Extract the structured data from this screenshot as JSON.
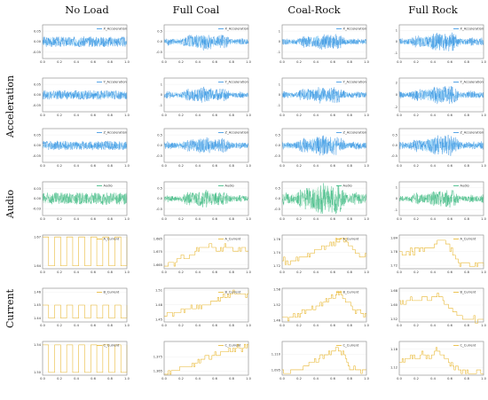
{
  "columns": [
    "No Load",
    "Full Coal",
    "Coal-Rock",
    "Full Rock"
  ],
  "row_groups": [
    {
      "label": "Acceleration",
      "rows": [
        0,
        1,
        2
      ]
    },
    {
      "label": "Audio",
      "rows": [
        3
      ]
    },
    {
      "label": "Current",
      "rows": [
        4,
        5,
        6
      ]
    }
  ],
  "colors": {
    "acceleration": "#2f8fe0",
    "acceleration_light": "#7ac7f5",
    "audio": "#2fb57a",
    "audio_light": "#9fdcbc",
    "current": "#e8b52a"
  },
  "chart_data": [
    {
      "row": 0,
      "type": "line",
      "kind": "vibration",
      "series_name": "X_Acceleration",
      "x_ticks": [
        "0.2",
        "0.4",
        "0.6",
        "0.8",
        "1.0"
      ],
      "x_first_tick": "0.0",
      "xlim": [
        0,
        1
      ],
      "y_ticks": [
        [
          "0.05",
          "0.00",
          "-0.05"
        ],
        [
          "0.5",
          "0.0",
          "-0.5"
        ],
        [
          "1",
          "0",
          "-1"
        ],
        [
          "1",
          "0",
          "-1"
        ]
      ],
      "ylim": [
        [
          -0.08,
          0.08
        ],
        [
          -0.8,
          0.8
        ],
        [
          -1.6,
          1.6
        ],
        [
          -1.5,
          1.5
        ]
      ],
      "amplitude": [
        0.025,
        0.3,
        0.55,
        0.6
      ]
    },
    {
      "row": 1,
      "type": "line",
      "kind": "vibration",
      "series_name": "Y_Acceleration",
      "x_ticks": [
        "0.2",
        "0.4",
        "0.6",
        "0.8",
        "1.0"
      ],
      "x_first_tick": "0.0",
      "xlim": [
        0,
        1
      ],
      "y_ticks": [
        [
          "0.05",
          "0.00",
          "-0.05"
        ],
        [
          "1",
          "0",
          "-1"
        ],
        [
          "1",
          "0",
          "-1"
        ],
        [
          "2",
          "0",
          "-2"
        ]
      ],
      "ylim": [
        [
          -0.08,
          0.08
        ],
        [
          -1.6,
          1.6
        ],
        [
          -1.6,
          1.6
        ],
        [
          -2.8,
          2.8
        ]
      ],
      "amplitude": [
        0.022,
        0.55,
        0.6,
        1.1
      ]
    },
    {
      "row": 2,
      "type": "line",
      "kind": "vibration",
      "series_name": "Z_Acceleration",
      "x_ticks": [
        "0.2",
        "0.4",
        "0.6",
        "0.8",
        "1.0"
      ],
      "x_first_tick": "0.0",
      "xlim": [
        0,
        1
      ],
      "y_ticks": [
        [
          "0.05",
          "0.00",
          "-0.05"
        ],
        [
          "0.5",
          "0.0",
          "-0.5"
        ],
        [
          "0.5",
          "0.0",
          "-0.5"
        ],
        [
          "0.5",
          "0.0",
          "-0.5"
        ]
      ],
      "ylim": [
        [
          -0.08,
          0.08
        ],
        [
          -0.8,
          0.8
        ],
        [
          -0.8,
          0.8
        ],
        [
          -0.8,
          0.8
        ]
      ],
      "amplitude": [
        0.022,
        0.3,
        0.35,
        0.35
      ]
    },
    {
      "row": 3,
      "type": "line",
      "kind": "audio",
      "series_name": "Audio",
      "x_ticks": [
        "0.2",
        "0.4",
        "0.6",
        "0.8",
        "1.0"
      ],
      "x_first_tick": "0.0",
      "xlim": [
        0,
        1
      ],
      "y_ticks": [
        [
          "0.03",
          "0.00",
          "-0.03"
        ],
        [
          "0.5",
          "0.0",
          "-0.5"
        ],
        [
          "0.5",
          "0.0",
          "-0.5"
        ],
        [
          "1",
          "0",
          "-1"
        ]
      ],
      "ylim": [
        [
          -0.05,
          0.05
        ],
        [
          -0.8,
          0.8
        ],
        [
          -0.8,
          0.8
        ],
        [
          -1.5,
          1.5
        ]
      ],
      "amplitude": [
        0.018,
        0.3,
        0.55,
        0.55
      ]
    },
    {
      "row": 4,
      "type": "line",
      "kind": "current",
      "series_name": "A_Current",
      "x_ticks": [
        "0.2",
        "0.4",
        "0.6",
        "0.8",
        "1.0"
      ],
      "x_first_tick": "0.0",
      "xlim": [
        0,
        1
      ],
      "y_ticks": [
        [
          "1.67",
          "1.64"
        ],
        [
          "1.685",
          "1.675",
          "1.665"
        ],
        [
          "1.76",
          "1.74",
          "1.72"
        ],
        [
          "1.84",
          "1.78",
          "1.72"
        ]
      ],
      "ylim": [
        [
          1.637,
          1.672
        ],
        [
          1.662,
          1.688
        ],
        [
          1.716,
          1.766
        ],
        [
          1.705,
          1.852
        ]
      ],
      "profiles": [
        [
          1.67,
          1.64,
          1.67,
          1.64,
          1.67,
          1.64,
          1.67,
          1.64,
          1.67,
          1.64,
          1.67,
          1.64,
          1.67,
          1.64,
          1.67
        ],
        [
          1.665,
          1.665,
          1.668,
          1.672,
          1.67,
          1.675,
          1.677,
          1.68,
          1.678,
          1.676,
          1.68,
          1.677,
          1.676,
          1.678,
          1.677
        ],
        [
          1.728,
          1.726,
          1.73,
          1.733,
          1.736,
          1.74,
          1.744,
          1.748,
          1.752,
          1.757,
          1.76,
          1.752,
          1.74,
          1.736,
          1.735
        ],
        [
          1.775,
          1.77,
          1.78,
          1.785,
          1.792,
          1.8,
          1.812,
          1.83,
          1.815,
          1.76,
          1.73,
          1.727,
          1.725,
          1.723,
          1.722
        ]
      ]
    },
    {
      "row": 5,
      "type": "line",
      "kind": "current",
      "series_name": "B_Current",
      "x_ticks": [
        "0.2",
        "0.4",
        "0.6",
        "0.8",
        "1.0"
      ],
      "x_first_tick": "0.0",
      "xlim": [
        0,
        1
      ],
      "y_ticks": [
        [
          "1.46",
          "1.45",
          "1.44"
        ],
        [
          "1.51",
          "1.48",
          "1.45"
        ],
        [
          "1.58",
          "1.52",
          "1.46"
        ],
        [
          "1.68",
          "1.60",
          "1.52"
        ]
      ],
      "ylim": [
        [
          1.437,
          1.463
        ],
        [
          1.445,
          1.514
        ],
        [
          1.455,
          1.585
        ],
        [
          1.505,
          1.695
        ]
      ],
      "profiles": [
        [
          1.45,
          1.44,
          1.45,
          1.44,
          1.45,
          1.44,
          1.45,
          1.44,
          1.45,
          1.44,
          1.45,
          1.44,
          1.45,
          1.44,
          1.45
        ],
        [
          1.458,
          1.46,
          1.465,
          1.468,
          1.47,
          1.475,
          1.478,
          1.482,
          1.488,
          1.493,
          1.497,
          1.502,
          1.506,
          1.5,
          1.505
        ],
        [
          1.465,
          1.47,
          1.478,
          1.488,
          1.498,
          1.508,
          1.52,
          1.532,
          1.548,
          1.566,
          1.555,
          1.525,
          1.505,
          1.49,
          1.475
        ],
        [
          1.62,
          1.6,
          1.64,
          1.61,
          1.65,
          1.625,
          1.66,
          1.64,
          1.6,
          1.56,
          1.53,
          1.525,
          1.52,
          1.52,
          1.518
        ]
      ]
    },
    {
      "row": 6,
      "type": "line",
      "kind": "current",
      "series_name": "C_Current",
      "x_ticks": [
        "0.2",
        "0.4",
        "0.6",
        "0.8",
        "1.0"
      ],
      "x_first_tick": "0.0",
      "xlim": [
        0,
        1
      ],
      "y_ticks": [
        [
          "1.54",
          "1.50"
        ],
        [
          "1.375",
          "1.365"
        ],
        [
          "1.110",
          "1.095"
        ],
        [
          "1.18",
          "1.12"
        ]
      ],
      "ylim": [
        [
          1.496,
          1.545
        ],
        [
          1.362,
          1.386
        ],
        [
          1.09,
          1.122
        ],
        [
          1.095,
          1.205
        ]
      ],
      "profiles": [
        [
          1.54,
          1.5,
          1.54,
          1.5,
          1.54,
          1.5,
          1.54,
          1.5,
          1.54,
          1.5,
          1.54,
          1.5,
          1.54,
          1.5,
          1.54
        ],
        [
          1.363,
          1.364,
          1.366,
          1.368,
          1.369,
          1.371,
          1.372,
          1.374,
          1.376,
          1.378,
          1.379,
          1.38,
          1.382,
          1.381,
          1.382
        ],
        [
          1.092,
          1.093,
          1.095,
          1.097,
          1.099,
          1.102,
          1.105,
          1.108,
          1.112,
          1.116,
          1.112,
          1.098,
          1.095,
          1.094,
          1.094
        ],
        [
          1.15,
          1.14,
          1.16,
          1.145,
          1.17,
          1.15,
          1.18,
          1.16,
          1.14,
          1.12,
          1.108,
          1.106,
          1.105,
          1.104,
          1.103
        ]
      ]
    }
  ]
}
